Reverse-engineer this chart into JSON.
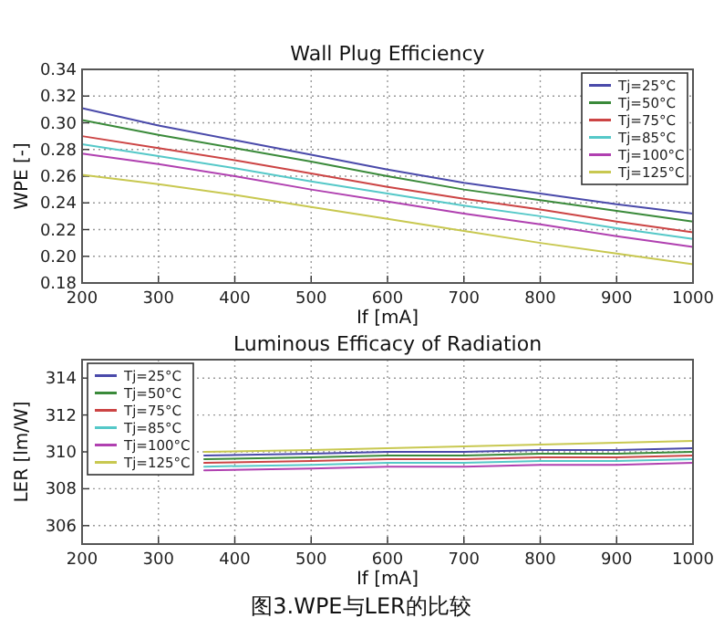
{
  "chart_data": [
    {
      "type": "line",
      "title": "Wall Plug Efficiency",
      "xlabel": "If [mA]",
      "ylabel": "WPE [-]",
      "x": [
        200,
        300,
        400,
        500,
        600,
        700,
        800,
        900,
        1000
      ],
      "series": [
        {
          "name": "Tj=25°C",
          "color": "#4a4aaa",
          "values": [
            0.311,
            0.298,
            0.287,
            0.276,
            0.265,
            0.255,
            0.247,
            0.239,
            0.232
          ]
        },
        {
          "name": "Tj=50°C",
          "color": "#3a8a3a",
          "values": [
            0.302,
            0.291,
            0.281,
            0.271,
            0.26,
            0.25,
            0.242,
            0.234,
            0.226
          ]
        },
        {
          "name": "Tj=75°C",
          "color": "#cc4444",
          "values": [
            0.29,
            0.281,
            0.272,
            0.262,
            0.252,
            0.243,
            0.235,
            0.226,
            0.218
          ]
        },
        {
          "name": "Tj=85°C",
          "color": "#55c8c8",
          "values": [
            0.284,
            0.275,
            0.266,
            0.256,
            0.247,
            0.238,
            0.23,
            0.221,
            0.213
          ]
        },
        {
          "name": "Tj=100°C",
          "color": "#b040b0",
          "values": [
            0.277,
            0.269,
            0.26,
            0.25,
            0.241,
            0.232,
            0.224,
            0.215,
            0.207
          ]
        },
        {
          "name": "Tj=125°C",
          "color": "#c8c850",
          "values": [
            0.261,
            0.254,
            0.246,
            0.237,
            0.228,
            0.219,
            0.21,
            0.202,
            0.194
          ]
        }
      ],
      "xlim": [
        200,
        1000
      ],
      "xticks": [
        200,
        300,
        400,
        500,
        600,
        700,
        800,
        900,
        1000
      ],
      "ylim": [
        0.18,
        0.34
      ],
      "yticks": [
        {
          "value": 0.18,
          "label": "0.18"
        },
        {
          "value": 0.2,
          "label": "0.20"
        },
        {
          "value": 0.22,
          "label": "0.22"
        },
        {
          "value": 0.24,
          "label": "0.24"
        },
        {
          "value": 0.26,
          "label": "0.26"
        },
        {
          "value": 0.28,
          "label": "0.28"
        },
        {
          "value": 0.3,
          "label": "0.30"
        },
        {
          "value": 0.32,
          "label": "0.32"
        },
        {
          "value": 0.34,
          "label": "0.34"
        }
      ],
      "grid": true,
      "legend": "top right"
    },
    {
      "type": "line",
      "title": "Luminous Efficacy of Radiation",
      "xlabel": "If [mA]",
      "ylabel": "LER [lm/W]",
      "x": [
        360,
        500,
        600,
        700,
        800,
        900,
        1000
      ],
      "series": [
        {
          "name": "Tj=25°C",
          "color": "#4a4aaa",
          "values": [
            309.8,
            309.9,
            310.0,
            310.0,
            310.1,
            310.1,
            310.2
          ]
        },
        {
          "name": "Tj=50°C",
          "color": "#3a8a3a",
          "values": [
            309.6,
            309.7,
            309.8,
            309.8,
            309.9,
            309.9,
            310.0
          ]
        },
        {
          "name": "Tj=75°C",
          "color": "#cc4444",
          "values": [
            309.4,
            309.5,
            309.6,
            309.6,
            309.7,
            309.7,
            309.8
          ]
        },
        {
          "name": "Tj=85°C",
          "color": "#55c8c8",
          "values": [
            309.2,
            309.3,
            309.4,
            309.4,
            309.5,
            309.5,
            309.6
          ]
        },
        {
          "name": "Tj=100°C",
          "color": "#b040b0",
          "values": [
            309.0,
            309.1,
            309.2,
            309.2,
            309.3,
            309.3,
            309.4
          ]
        },
        {
          "name": "Tj=125°C",
          "color": "#c8c850",
          "values": [
            310.0,
            310.1,
            310.2,
            310.3,
            310.4,
            310.5,
            310.6
          ]
        }
      ],
      "xlim": [
        200,
        1000
      ],
      "xticks": [
        200,
        300,
        400,
        500,
        600,
        700,
        800,
        900,
        1000
      ],
      "ylim": [
        305,
        315
      ],
      "yticks": [
        306,
        308,
        310,
        312,
        314
      ],
      "grid": true,
      "legend": "top left",
      "annotations": [
        "图3.WPE与LER的比较"
      ]
    }
  ]
}
